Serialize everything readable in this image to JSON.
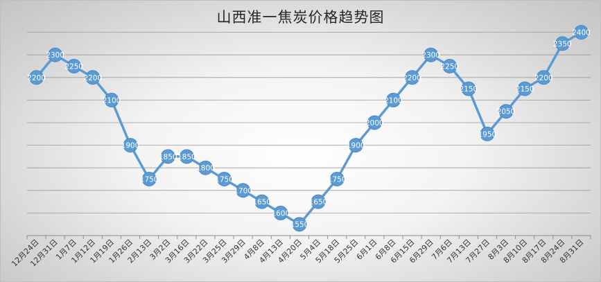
{
  "chart_data": {
    "type": "line",
    "title": "山西准一焦炭价格趋势图",
    "categories": [
      "12月24日",
      "12月31日",
      "1月7日",
      "1月12日",
      "1月19日",
      "1月26日",
      "2月13日",
      "3月2日",
      "3月16日",
      "3月22日",
      "3月25日",
      "3月29日",
      "4月8日",
      "4月13日",
      "4月20日",
      "5月4日",
      "5月18日",
      "5月25日",
      "6月1日",
      "6月8日",
      "6月15日",
      "6月29日",
      "7月6日",
      "7月13日",
      "7月27日",
      "8月3日",
      "8月10日",
      "8月17日",
      "8月24日",
      "8月31日"
    ],
    "series": [
      {
        "values": [
          2200,
          2300,
          2250,
          2200,
          2100,
          1900,
          1750,
          1850,
          1850,
          1800,
          1750,
          1700,
          1650,
          1600,
          1550,
          1650,
          1750,
          1900,
          2000,
          2100,
          2200,
          2300,
          2250,
          2150,
          1950,
          2050,
          2150,
          2200,
          2350,
          2400
        ]
      }
    ],
    "ylim": [
      1500,
      2450
    ],
    "grid": true,
    "legend": "none",
    "line_color": "#5b9bd5"
  }
}
